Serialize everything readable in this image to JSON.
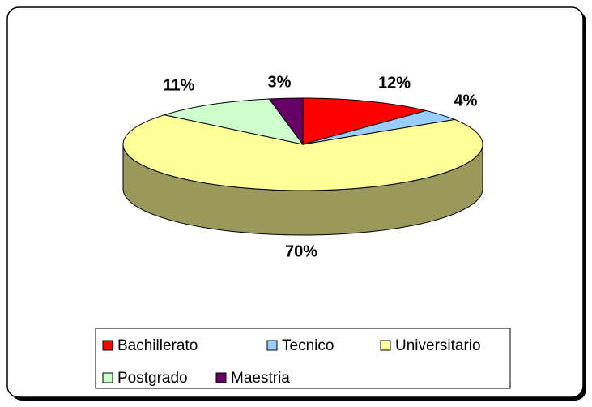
{
  "chart_data": {
    "type": "pie",
    "categories": [
      "Bachillerato",
      "Tecnico",
      "Universitario",
      "Postgrado",
      "Maestria"
    ],
    "values": [
      12,
      4,
      70,
      11,
      3
    ],
    "value_labels": [
      "12%",
      "4%",
      "70%",
      "11%",
      "3%"
    ],
    "colors": [
      "#ff0000",
      "#99ccff",
      "#ffff99",
      "#ccffcc",
      "#660066"
    ],
    "legend": "bottom"
  }
}
